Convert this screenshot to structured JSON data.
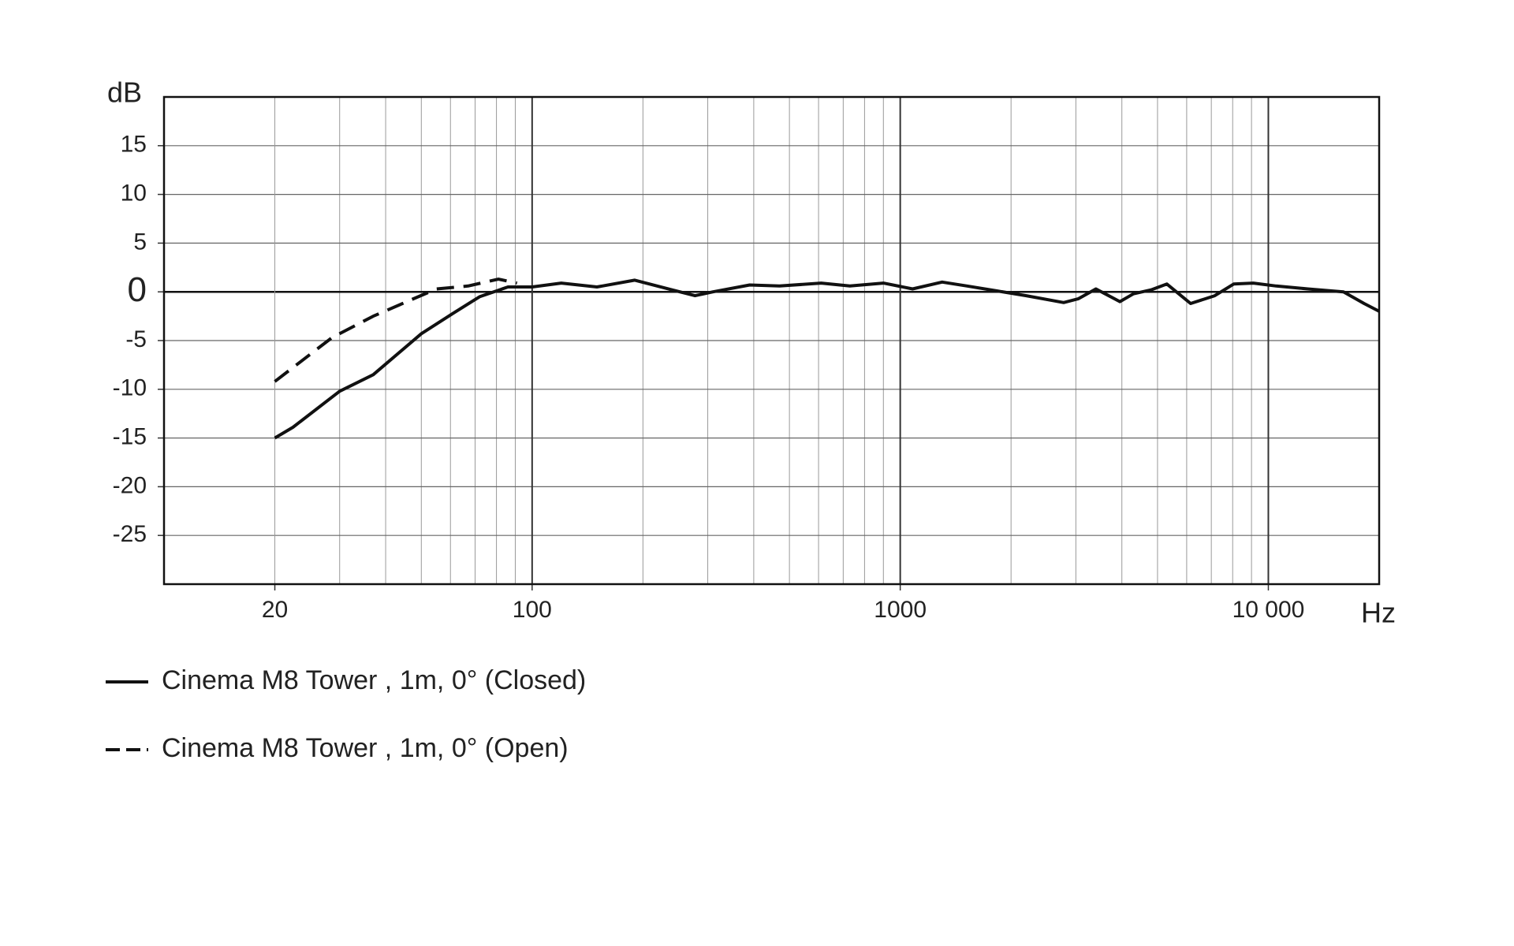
{
  "chart_data": {
    "type": "line",
    "log_x": true,
    "grid": true,
    "x_label": "Hz",
    "y_label": "dB",
    "xlim": [
      10,
      20000
    ],
    "ylim": [
      -30,
      20
    ],
    "xticks": [
      20,
      100,
      1000,
      {
        "value": 10000,
        "label": "10 000"
      }
    ],
    "x_minor_grid": [
      30,
      40,
      50,
      60,
      70,
      80,
      90,
      200,
      300,
      400,
      500,
      600,
      700,
      800,
      900,
      2000,
      3000,
      4000,
      5000,
      6000,
      7000,
      8000,
      9000
    ],
    "yticks": [
      -25,
      -20,
      -15,
      -10,
      -5,
      0,
      5,
      10,
      15
    ],
    "series": [
      {
        "name": "Cinema M8 Tower , 1m, 0° (Closed)",
        "color": "#111111",
        "dash": "solid",
        "x": [
          20,
          22.4,
          30,
          37,
          50,
          61,
          72,
          86,
          100,
          120,
          150,
          190,
          240,
          277,
          310,
          390,
          470,
          610,
          730,
          900,
          1080,
          1300,
          1520,
          1830,
          2200,
          2780,
          3050,
          3400,
          3950,
          4300,
          4800,
          5300,
          6150,
          7150,
          8050,
          9100,
          10500,
          12800,
          16000,
          18200,
          20000
        ],
        "values": [
          -15,
          -13.9,
          -10.2,
          -8.5,
          -4.3,
          -2.2,
          -0.5,
          0.5,
          0.5,
          0.9,
          0.5,
          1.2,
          0.2,
          -0.4,
          0,
          0.7,
          0.6,
          0.9,
          0.6,
          0.9,
          0.3,
          1.0,
          0.6,
          0.1,
          -0.4,
          -1.1,
          -0.7,
          0.3,
          -1.0,
          -0.2,
          0.2,
          0.8,
          -1.2,
          -0.4,
          0.8,
          0.9,
          0.6,
          0.3,
          0,
          -1.2,
          -2.0
        ]
      },
      {
        "name": "Cinema M8 Tower , 1m, 0° (Open)",
        "color": "#111111",
        "dash": "dashed",
        "x": [
          20,
          28.6,
          37,
          47,
          55,
          67,
          81,
          91
        ],
        "values": [
          -9.2,
          -4.7,
          -2.5,
          -0.8,
          0.3,
          0.6,
          1.3,
          0.9
        ]
      }
    ]
  }
}
